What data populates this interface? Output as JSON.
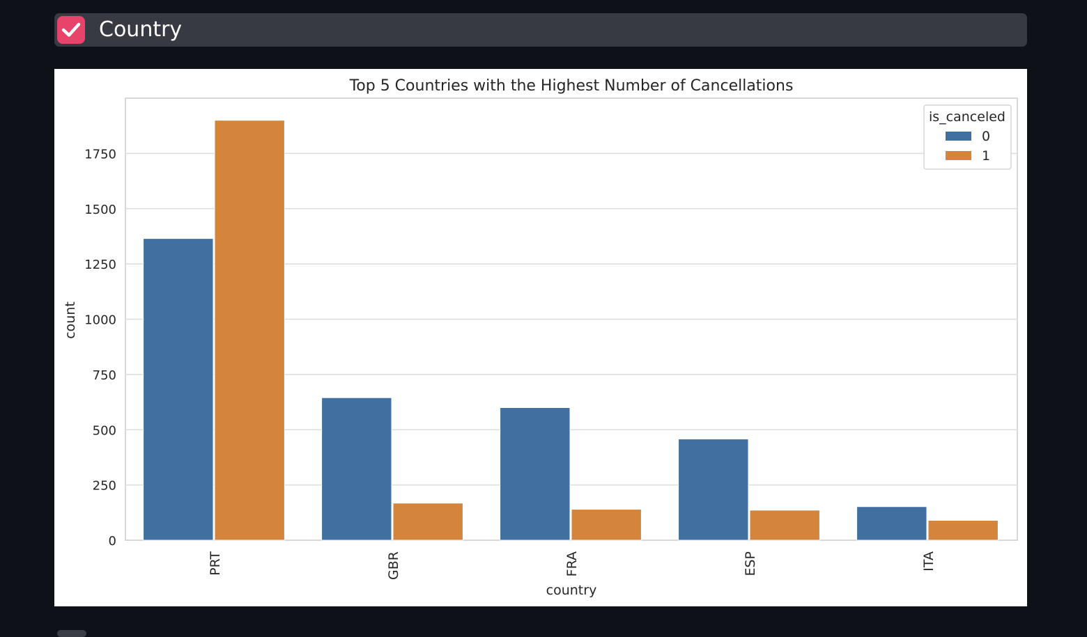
{
  "section": {
    "title": "Country",
    "checked": true,
    "checkbox_color": "#e8436a"
  },
  "chart_data": {
    "type": "bar",
    "title": "Top 5 Countries with the Highest Number of Cancellations",
    "xlabel": "country",
    "ylabel": "count",
    "categories": [
      "PRT",
      "GBR",
      "FRA",
      "ESP",
      "ITA"
    ],
    "series": [
      {
        "name": "0",
        "values": [
          1365,
          645,
          600,
          458,
          152
        ],
        "color": "#4170a0"
      },
      {
        "name": "1",
        "values": [
          1900,
          168,
          140,
          136,
          90
        ],
        "color": "#d5843b"
      }
    ],
    "ylim": [
      0,
      2000
    ],
    "yticks": [
      0,
      250,
      500,
      750,
      1000,
      1250,
      1500,
      1750
    ],
    "ytick_labels": [
      "0",
      "250",
      "500",
      "750",
      "1000",
      "1250",
      "1500",
      "1750"
    ],
    "legend_title": "is_canceled",
    "legend_position": "top-right",
    "grid": true
  }
}
